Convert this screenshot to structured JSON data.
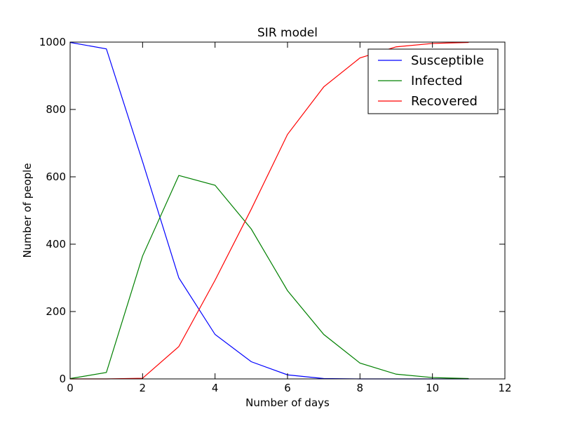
{
  "chart_data": {
    "type": "line",
    "title": "SIR model",
    "xlabel": "Number of days",
    "ylabel": "Number of people",
    "xlim": [
      0,
      12
    ],
    "ylim": [
      0,
      1000
    ],
    "xticks": [
      0,
      2,
      4,
      6,
      8,
      10,
      12
    ],
    "yticks": [
      0,
      200,
      400,
      600,
      800,
      1000
    ],
    "grid": false,
    "legend_position": "top-right",
    "x": [
      0,
      1,
      2,
      3,
      4,
      5,
      6,
      7,
      8,
      9,
      10,
      11
    ],
    "series": [
      {
        "name": "Susceptible",
        "color": "#0000ff",
        "values": [
          999,
          980,
          645,
          300,
          132,
          51,
          12,
          1,
          0,
          0,
          0,
          0
        ]
      },
      {
        "name": "Infected",
        "color": "#008000",
        "values": [
          1,
          19,
          365,
          604,
          575,
          445,
          262,
          132,
          47,
          14,
          4,
          1
        ]
      },
      {
        "name": "Recovered",
        "color": "#ff0000",
        "values": [
          0,
          0,
          2,
          96,
          293,
          504,
          726,
          867,
          953,
          986,
          996,
          999
        ]
      }
    ]
  }
}
